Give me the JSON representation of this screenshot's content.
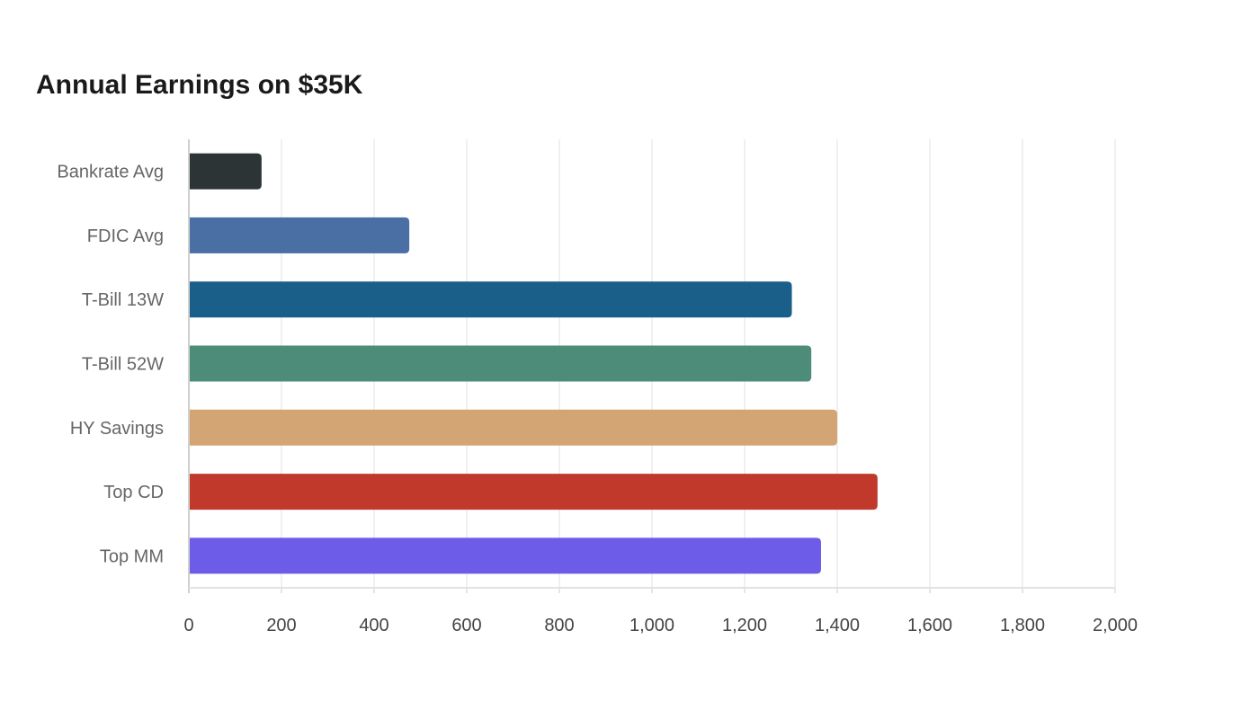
{
  "chart_data": {
    "type": "bar",
    "orientation": "horizontal",
    "title": "Annual Earnings on $35K",
    "xlabel": "",
    "ylabel": "",
    "categories": [
      "Bankrate Avg",
      "FDIC Avg",
      "T-Bill 13W",
      "T-Bill 52W",
      "HY Savings",
      "Top CD",
      "Top MM"
    ],
    "values": [
      157,
      476,
      1302,
      1344,
      1400,
      1487,
      1365
    ],
    "colors": [
      "#2d3436",
      "#4a6fa5",
      "#1a5f8a",
      "#4e8c7a",
      "#d4a574",
      "#c0392b",
      "#6c5ce7"
    ],
    "xlim": [
      0,
      2000
    ],
    "x_ticks": [
      "0",
      "200",
      "400",
      "600",
      "800",
      "1,000",
      "1,200",
      "1,400",
      "1,600",
      "1,800",
      "2,000"
    ],
    "grid": true,
    "legend": "none"
  }
}
